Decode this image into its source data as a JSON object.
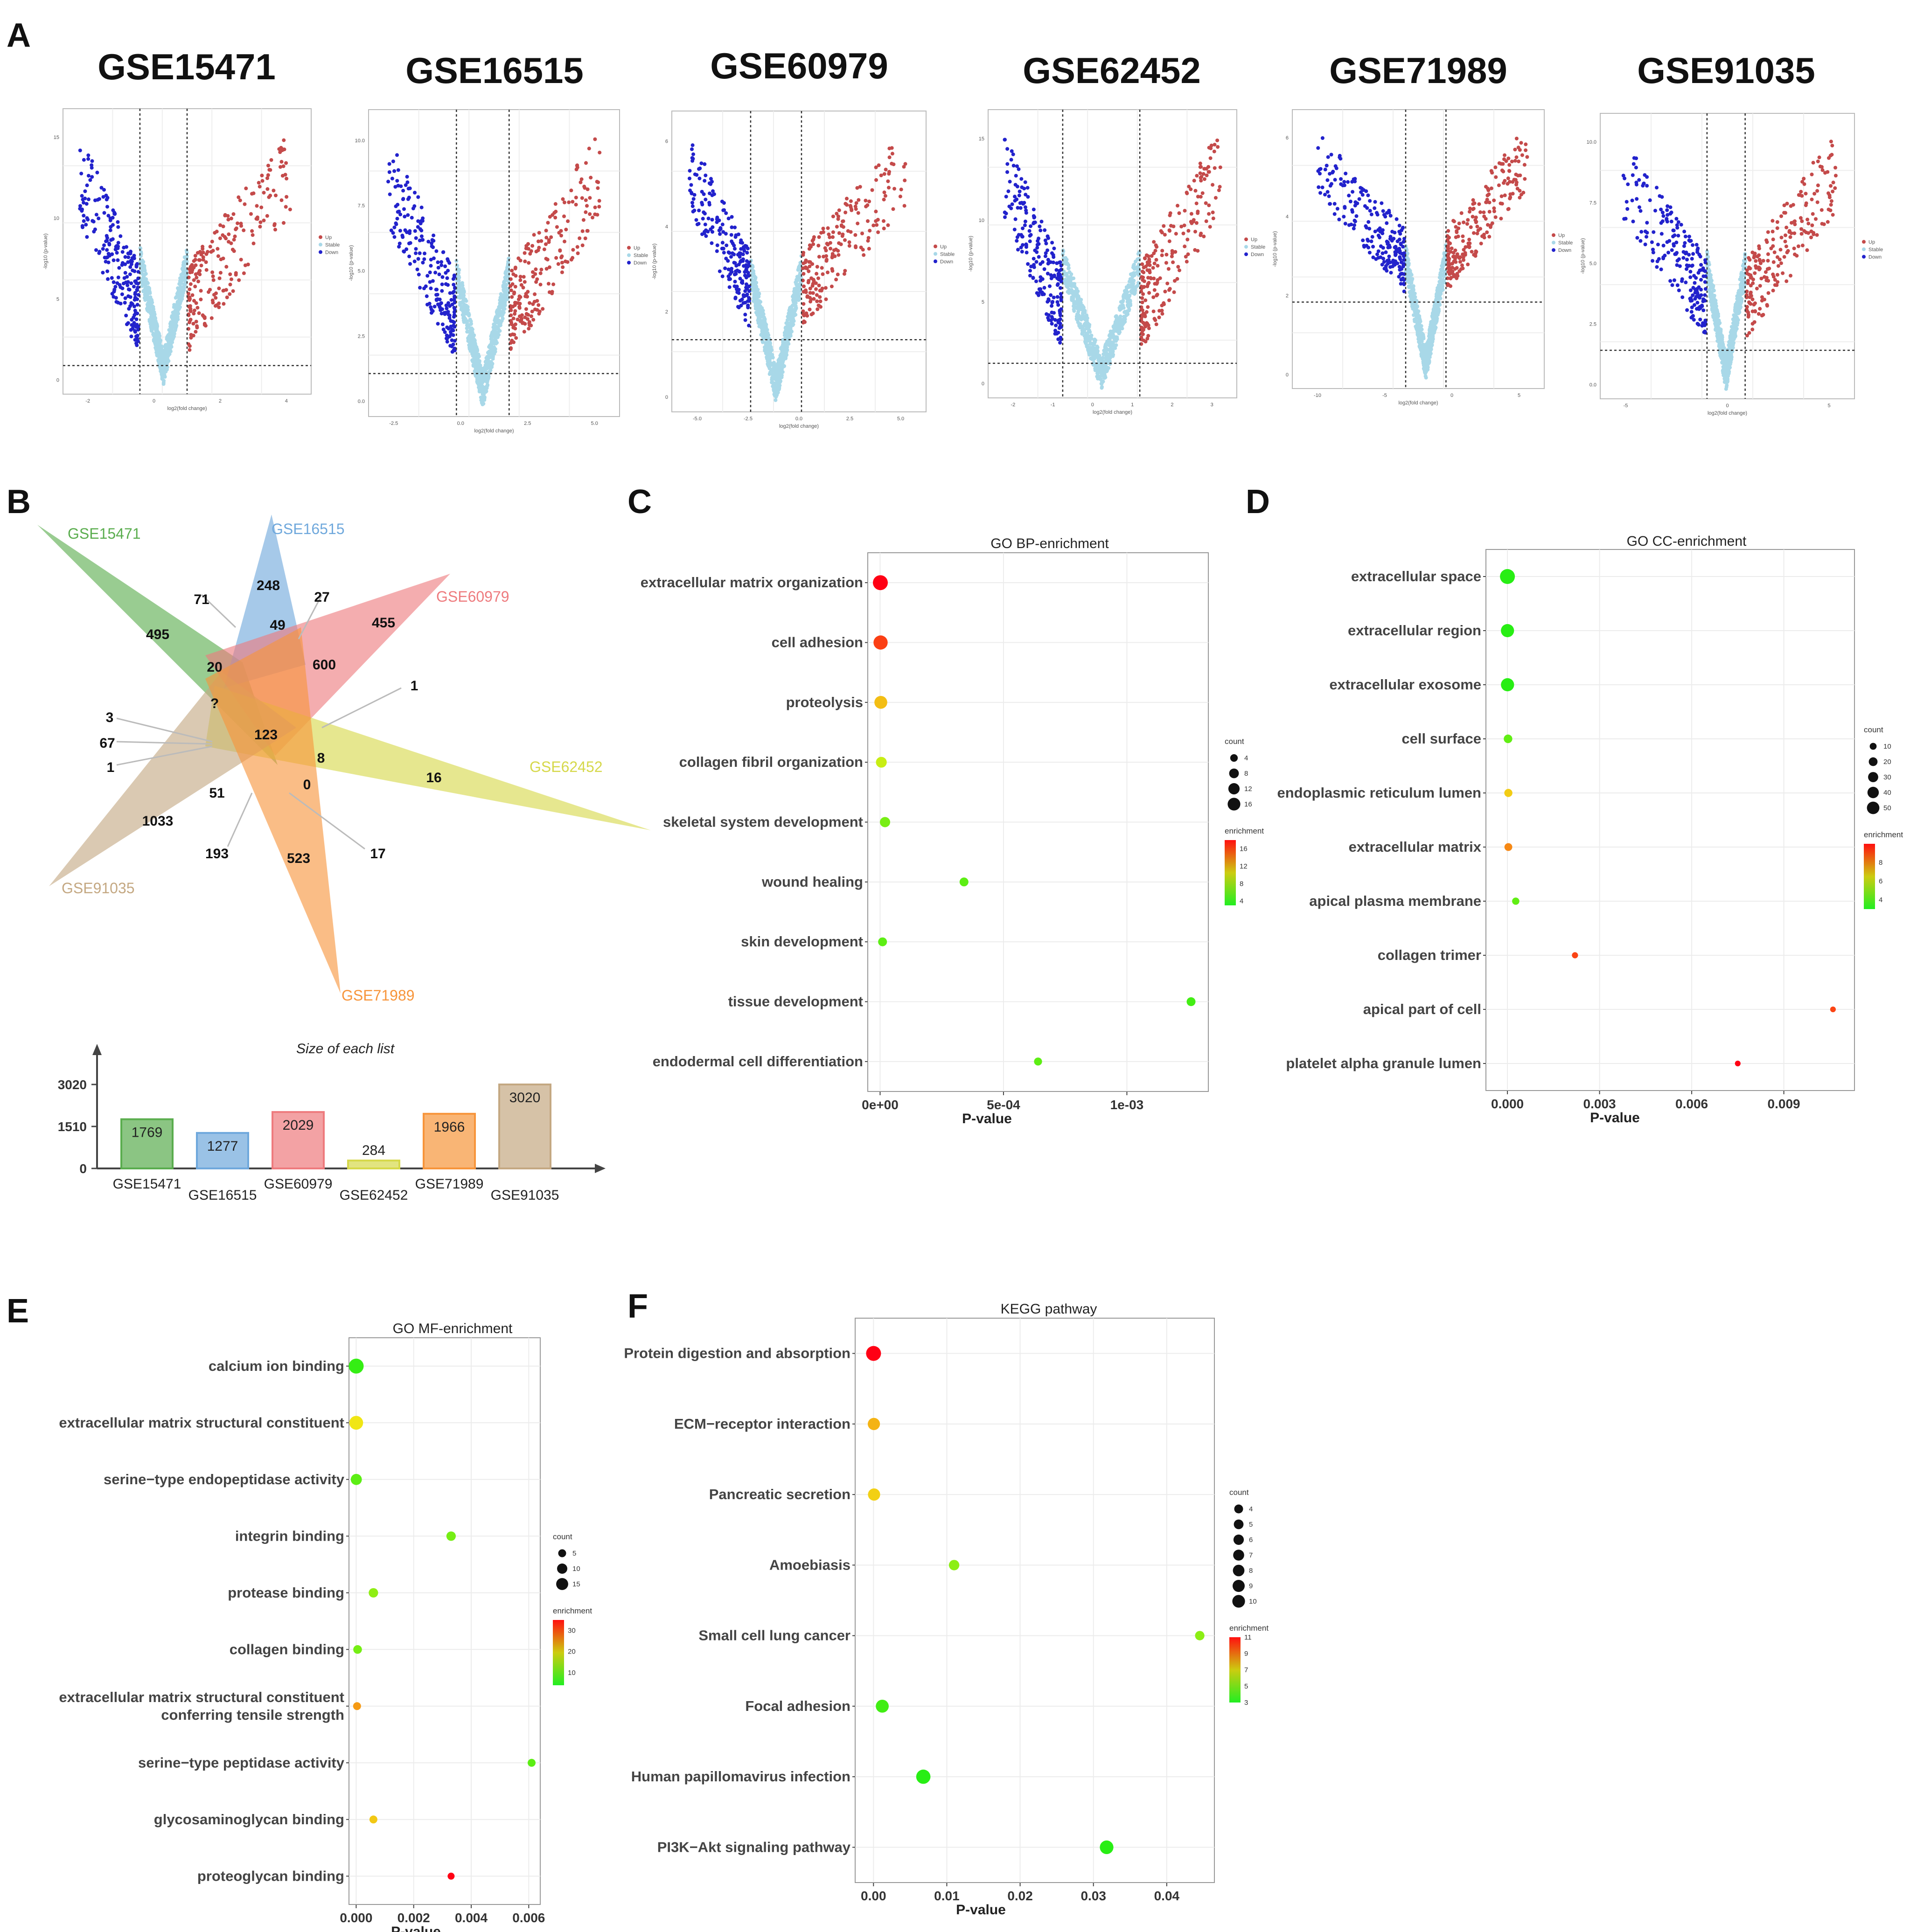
{
  "panel_letters": [
    "A",
    "B",
    "C",
    "D",
    "E",
    "F"
  ],
  "volcano": {
    "xlabel": "log2(fold change)",
    "ylabel": "-log10 (p-value)",
    "legend": [
      "Up",
      "Stable",
      "Down"
    ],
    "colors": {
      "up": "#c44a4a",
      "stable": "#a8d8e8",
      "down": "#2222cc"
    },
    "plots": [
      {
        "title": "GSE15471",
        "xticks": [
          "-2",
          "0",
          "2",
          "4"
        ],
        "yticks": [
          "0",
          "5",
          "10",
          "15"
        ]
      },
      {
        "title": "GSE16515",
        "xticks": [
          "-2.5",
          "0.0",
          "2.5",
          "5.0"
        ],
        "yticks": [
          "0.0",
          "2.5",
          "5.0",
          "7.5",
          "10.0"
        ]
      },
      {
        "title": "GSE60979",
        "xticks": [
          "-5.0",
          "-2.5",
          "0.0",
          "2.5",
          "5.0"
        ],
        "yticks": [
          "0",
          "2",
          "4",
          "6"
        ]
      },
      {
        "title": "GSE62452",
        "xticks": [
          "-2",
          "-1",
          "0",
          "1",
          "2",
          "3"
        ],
        "yticks": [
          "0",
          "5",
          "10",
          "15"
        ]
      },
      {
        "title": "GSE71989",
        "xticks": [
          "-10",
          "-5",
          "0",
          "5"
        ],
        "yticks": [
          "0",
          "2",
          "4",
          "6"
        ]
      },
      {
        "title": "GSE91035",
        "xticks": [
          "-5",
          "0",
          "5"
        ],
        "yticks": [
          "0.0",
          "2.5",
          "5.0",
          "7.5",
          "10.0"
        ]
      }
    ]
  },
  "venn": {
    "sets": [
      {
        "name": "GSE15471",
        "color": "#5aad4e"
      },
      {
        "name": "GSE16515",
        "color": "#6fa8dc"
      },
      {
        "name": "GSE60979",
        "color": "#ee7b7e"
      },
      {
        "name": "GSE62452",
        "color": "#d6d84a"
      },
      {
        "name": "GSE91035",
        "color": "#c4a882"
      },
      {
        "name": "GSE71989",
        "color": "#f7953b"
      }
    ],
    "numbers": [
      "495",
      "71",
      "248",
      "27",
      "455",
      "49",
      "600",
      "20",
      "1",
      "?",
      "123",
      "3",
      "67",
      "8",
      "1",
      "16",
      "51",
      "0",
      "1033",
      "193",
      "523",
      "17"
    ]
  },
  "list_sizes": {
    "title": "Size of each list",
    "yticks": [
      "0",
      "1510",
      "3020"
    ],
    "bars": [
      {
        "name": "GSE15471",
        "value": 1769,
        "label": "1769",
        "color": "#5aad4e"
      },
      {
        "name": "GSE16515",
        "value": 1277,
        "label": "1277",
        "color": "#6fa8dc"
      },
      {
        "name": "GSE60979",
        "value": 2029,
        "label": "2029",
        "color": "#ee7b7e"
      },
      {
        "name": "GSE62452",
        "value": 284,
        "label": "284",
        "color": "#d6d84a"
      },
      {
        "name": "GSE71989",
        "value": 1966,
        "label": "1966",
        "color": "#f7953b"
      },
      {
        "name": "GSE91035",
        "value": 3020,
        "label": "3020",
        "color": "#c4a882"
      }
    ]
  },
  "chart_data": [
    {
      "type": "scatter",
      "title": "GO BP-enrichment",
      "xlabel": "P-value",
      "xlim": [
        -5e-05,
        0.00133
      ],
      "xticks": [
        {
          "v": 0,
          "label": "0e+00"
        },
        {
          "v": 0.0005,
          "label": "5e-04"
        },
        {
          "v": 0.001,
          "label": "1e-03"
        }
      ],
      "categories": [
        "extracellular matrix organization",
        "cell adhesion",
        "proteolysis",
        "collagen fibril organization",
        "skeletal system development",
        "wound healing",
        "skin development",
        "tissue development",
        "endodermal cell differentiation"
      ],
      "x": [
        1e-06,
        2e-06,
        3e-06,
        5e-06,
        2e-05,
        0.00034,
        1e-05,
        0.00126,
        0.00064
      ],
      "count": [
        16,
        14,
        11,
        7,
        6,
        4,
        4,
        4,
        3
      ],
      "enrichment": [
        18,
        16,
        12,
        9,
        6,
        5,
        5,
        4,
        5
      ],
      "legend": {
        "count_title": "count",
        "count_levels": [
          4,
          8,
          12,
          16
        ],
        "enrich_title": "enrichment",
        "enrich_levels": [
          4,
          8,
          12,
          16
        ],
        "enrich_range": [
          3,
          18
        ]
      }
    },
    {
      "type": "scatter",
      "title": "GO CC-enrichment",
      "xlabel": "P-value",
      "xlim": [
        -0.0007,
        0.0113
      ],
      "xticks": [
        {
          "v": 0,
          "label": "0.000"
        },
        {
          "v": 0.003,
          "label": "0.003"
        },
        {
          "v": 0.006,
          "label": "0.006"
        },
        {
          "v": 0.009,
          "label": "0.009"
        }
      ],
      "categories": [
        "extracellular space",
        "extracellular region",
        "extracellular exosome",
        "cell surface",
        "endoplasmic reticulum lumen",
        "extracellular matrix",
        "apical plasma membrane",
        "collagen trimer",
        "apical part of cell",
        "platelet alpha granule lumen"
      ],
      "x": [
        1e-06,
        2e-06,
        3e-06,
        2e-05,
        3e-05,
        3e-05,
        0.00027,
        0.0022,
        0.0106,
        0.0075
      ],
      "count": [
        52,
        38,
        38,
        12,
        10,
        9,
        7,
        4,
        3,
        3
      ],
      "enrichment": [
        3,
        3,
        3,
        4,
        7,
        8,
        4,
        9,
        9,
        10
      ],
      "legend": {
        "count_title": "count",
        "count_levels": [
          10,
          20,
          30,
          40,
          50
        ],
        "enrich_title": "enrichment",
        "enrich_levels": [
          4,
          6,
          8
        ],
        "enrich_range": [
          3,
          10
        ]
      }
    },
    {
      "type": "scatter",
      "title": "GO MF-enrichment",
      "xlabel": "P-value",
      "xlim": [
        -0.00025,
        0.0064
      ],
      "xticks": [
        {
          "v": 0,
          "label": "0.000"
        },
        {
          "v": 0.002,
          "label": "0.002"
        },
        {
          "v": 0.004,
          "label": "0.004"
        },
        {
          "v": 0.006,
          "label": "0.006"
        }
      ],
      "categories": [
        "calcium ion binding",
        "extracellular matrix structural constituent",
        "serine−type endopeptidase activity",
        "integrin binding",
        "protease binding",
        "collagen binding",
        "extracellular matrix structural constituent conferring tensile strength",
        "serine−type peptidase activity",
        "glycosaminoglycan binding",
        "proteoglycan binding"
      ],
      "label_lines": [
        [
          "calcium ion binding"
        ],
        [
          "extracellular matrix structural constituent"
        ],
        [
          "serine−type endopeptidase activity"
        ],
        [
          "integrin binding"
        ],
        [
          "protease binding"
        ],
        [
          "collagen binding"
        ],
        [
          "extracellular matrix structural constituent",
          "conferring tensile strength"
        ],
        [
          "serine−type peptidase activity"
        ],
        [
          "glycosaminoglycan binding"
        ],
        [
          "proteoglycan binding"
        ]
      ],
      "x": [
        1e-06,
        2e-06,
        5e-06,
        0.0033,
        0.0006,
        5e-05,
        3e-05,
        0.0061,
        0.0006,
        0.0033
      ],
      "count": [
        17,
        14,
        8,
        5,
        5,
        4,
        3,
        3,
        3,
        2
      ],
      "enrichment": [
        5,
        20,
        8,
        10,
        12,
        10,
        25,
        8,
        22,
        35
      ],
      "legend": {
        "count_title": "count",
        "count_levels": [
          5,
          10,
          15
        ],
        "enrich_title": "enrichment",
        "enrich_levels": [
          10,
          20,
          30
        ],
        "enrich_range": [
          4,
          35
        ]
      }
    },
    {
      "type": "scatter",
      "title": "KEGG pathway",
      "xlabel": "P-value",
      "xlim": [
        -0.0025,
        0.0465
      ],
      "xticks": [
        {
          "v": 0,
          "label": "0.00"
        },
        {
          "v": 0.01,
          "label": "0.01"
        },
        {
          "v": 0.02,
          "label": "0.02"
        },
        {
          "v": 0.03,
          "label": "0.03"
        },
        {
          "v": 0.04,
          "label": "0.04"
        }
      ],
      "categories": [
        "Protein digestion and absorption",
        "ECM−receptor interaction",
        "Pancreatic secretion",
        "Amoebiasis",
        "Small cell lung cancer",
        "Focal adhesion",
        "Human papillomavirus infection",
        "PI3K−Akt signaling pathway"
      ],
      "x": [
        1e-05,
        5e-05,
        8e-05,
        0.011,
        0.0445,
        0.0012,
        0.0068,
        0.0318
      ],
      "count": [
        10,
        6,
        6,
        4,
        3,
        7,
        9,
        8
      ],
      "enrichment": [
        11,
        8,
        7.5,
        5,
        5,
        3.5,
        3,
        3
      ],
      "legend": {
        "count_title": "count",
        "count_levels": [
          4,
          5,
          6,
          7,
          8,
          9,
          10
        ],
        "enrich_title": "enrichment",
        "enrich_levels": [
          3,
          5,
          7,
          9,
          11
        ],
        "enrich_range": [
          3,
          11
        ]
      }
    }
  ]
}
